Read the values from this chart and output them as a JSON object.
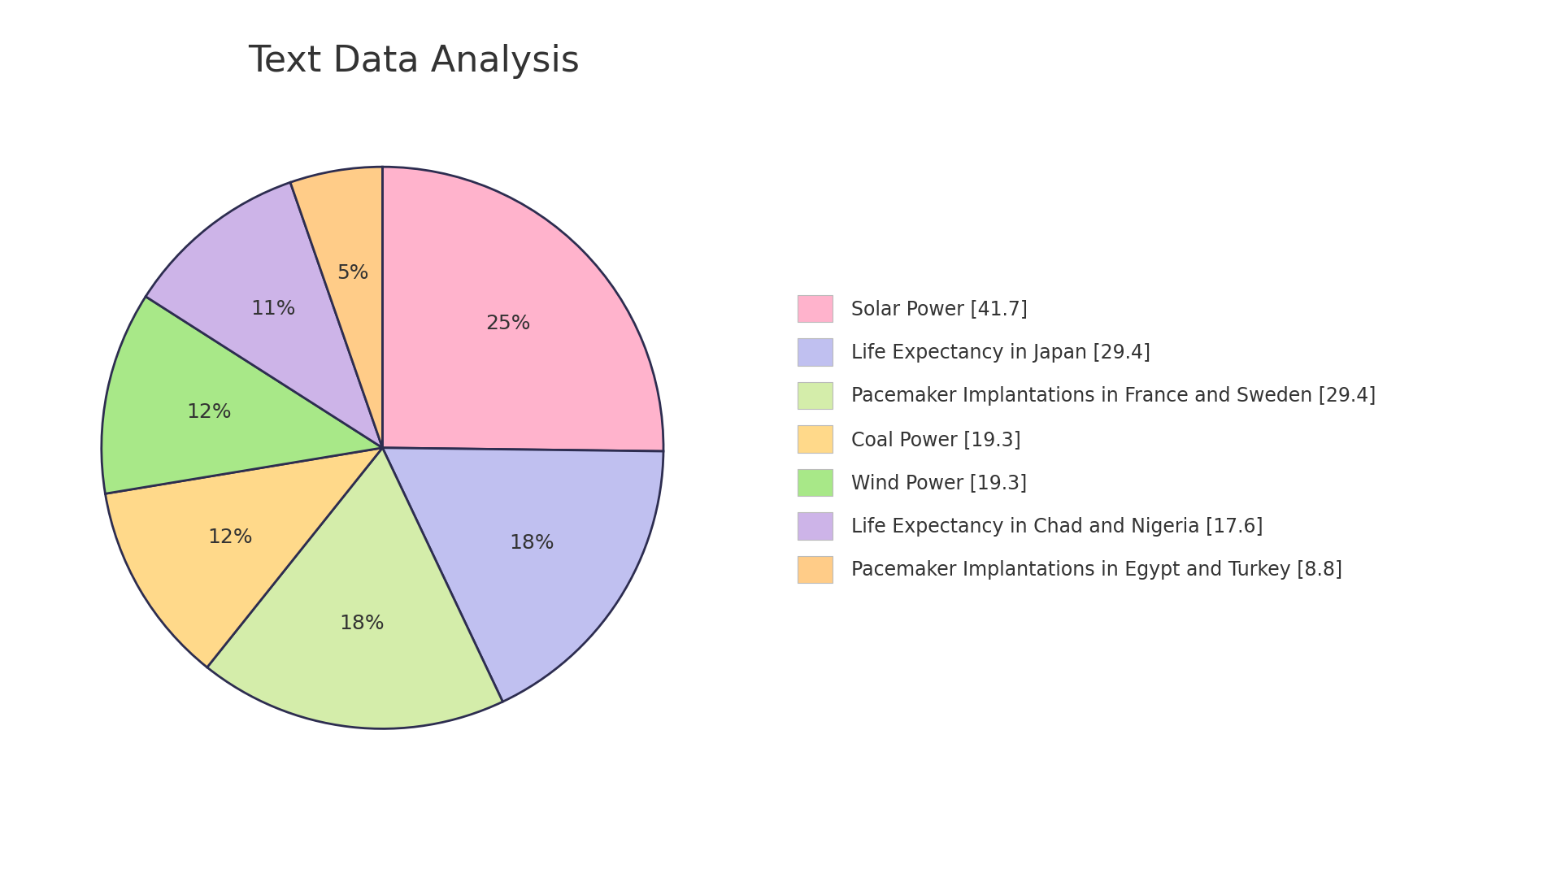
{
  "title": "Text Data Analysis",
  "slices": [
    {
      "label": "Solar Power [41.7]",
      "value": 41.7,
      "color": "#FFB3CC",
      "pct": "25%"
    },
    {
      "label": "Life Expectancy in Japan [29.4]",
      "value": 29.4,
      "color": "#C0C0F0",
      "pct": "18%"
    },
    {
      "label": "Pacemaker Implantations in France and Sweden [29.4]",
      "value": 29.4,
      "color": "#D4EDAA",
      "pct": "18%"
    },
    {
      "label": "Coal Power [19.3]",
      "value": 19.3,
      "color": "#FFD98A",
      "pct": "12%"
    },
    {
      "label": "Wind Power [19.3]",
      "value": 19.3,
      "color": "#A8E888",
      "pct": "12%"
    },
    {
      "label": "Life Expectancy in Chad and Nigeria [17.6]",
      "value": 17.6,
      "color": "#CDB4E8",
      "pct": "11%"
    },
    {
      "label": "Pacemaker Implantations in Egypt and Turkey [8.8]",
      "value": 8.8,
      "color": "#FFCC88",
      "pct": "5%"
    }
  ],
  "background_color": "#FFFFFF",
  "edge_color": "#2D2D50",
  "text_color": "#333333",
  "title_fontsize": 32,
  "label_fontsize": 18,
  "legend_fontsize": 17
}
